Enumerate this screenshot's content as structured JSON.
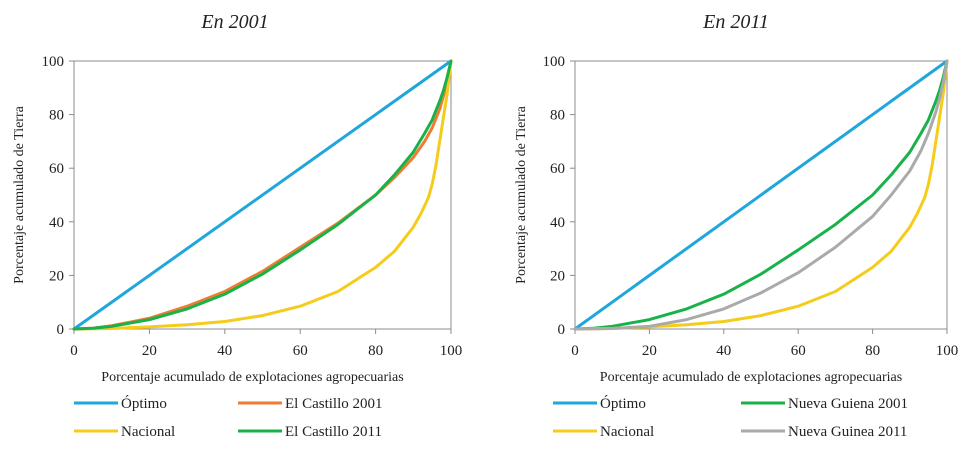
{
  "chart_data": [
    {
      "type": "line",
      "title": "En 2001",
      "xlabel": "Porcentaje acumulado de explotaciones agropecuarias",
      "ylabel": "Porcentaje acumulado de Tierra",
      "xlim": [
        0,
        100
      ],
      "ylim": [
        0,
        100
      ],
      "xticks": [
        "0",
        "20",
        "40",
        "60",
        "80",
        "100"
      ],
      "yticks": [
        "0",
        "20",
        "40",
        "60",
        "80",
        "100"
      ],
      "grid": false,
      "legend_position": "bottom",
      "series": [
        {
          "name": "Óptimo",
          "color": "#1fa6dc",
          "x": [
            0,
            100
          ],
          "y": [
            0,
            100
          ]
        },
        {
          "name": "El Castillo 2001",
          "color": "#ee7d31",
          "x": [
            0,
            5,
            10,
            20,
            30,
            40,
            50,
            60,
            70,
            80,
            85,
            90,
            93,
            95,
            97,
            98,
            99,
            100
          ],
          "y": [
            0,
            0.3,
            1.2,
            4,
            8.5,
            14,
            21.5,
            30.5,
            39.5,
            50,
            56.5,
            64,
            70,
            75,
            82,
            87,
            92,
            100
          ]
        },
        {
          "name": "Nacional",
          "color": "#f5cc1b",
          "x": [
            0,
            10,
            20,
            30,
            40,
            50,
            60,
            70,
            80,
            85,
            90,
            92,
            94,
            95,
            96,
            97,
            98,
            99,
            100
          ],
          "y": [
            0,
            0.2,
            0.8,
            1.6,
            2.8,
            5,
            8.5,
            14,
            23,
            29,
            38,
            43,
            49,
            54,
            61,
            70,
            79,
            88,
            100
          ]
        },
        {
          "name": "El Castillo 2011",
          "color": "#19b24a",
          "x": [
            0,
            5,
            10,
            20,
            30,
            40,
            50,
            60,
            70,
            80,
            85,
            90,
            93,
            95,
            97,
            98,
            99,
            100
          ],
          "y": [
            0,
            0.3,
            1,
            3.5,
            7.5,
            13,
            20.5,
            29.5,
            39,
            50,
            57.5,
            66,
            73,
            78,
            85,
            89,
            94,
            100
          ]
        }
      ]
    },
    {
      "type": "line",
      "title": "En 2011",
      "xlabel": "Porcentaje acumulado de explotaciones agropecuarias",
      "ylabel": "Porcentaje acumulado de Tierra",
      "xlim": [
        0,
        100
      ],
      "ylim": [
        0,
        100
      ],
      "xticks": [
        "0",
        "20",
        "40",
        "60",
        "80",
        "100"
      ],
      "yticks": [
        "0",
        "20",
        "40",
        "60",
        "80",
        "100"
      ],
      "grid": false,
      "legend_position": "bottom",
      "series": [
        {
          "name": "Óptimo",
          "color": "#1fa6dc",
          "x": [
            0,
            100
          ],
          "y": [
            0,
            100
          ]
        },
        {
          "name": "Nueva Guiena 2001",
          "color": "#19b24a",
          "x": [
            0,
            5,
            10,
            20,
            30,
            40,
            50,
            60,
            70,
            80,
            85,
            90,
            93,
            95,
            97,
            98,
            99,
            100
          ],
          "y": [
            0,
            0.3,
            1,
            3.5,
            7.5,
            13,
            20.5,
            29.5,
            39,
            50,
            57.5,
            66,
            73,
            78,
            85,
            89,
            94,
            100
          ]
        },
        {
          "name": "Nacional",
          "color": "#f5cc1b",
          "x": [
            0,
            10,
            20,
            30,
            40,
            50,
            60,
            70,
            80,
            85,
            90,
            92,
            94,
            95,
            96,
            97,
            98,
            99,
            100
          ],
          "y": [
            0,
            0.2,
            0.8,
            1.6,
            2.8,
            5,
            8.5,
            14,
            23,
            29,
            38,
            43,
            49,
            54,
            61,
            70,
            79,
            88,
            100
          ]
        },
        {
          "name": "Nueva Guinea 2011",
          "color": "#aaaaaa",
          "x": [
            0,
            10,
            20,
            30,
            40,
            50,
            60,
            70,
            80,
            85,
            90,
            93,
            95,
            97,
            98,
            99,
            100
          ],
          "y": [
            0,
            0.2,
            1,
            3.5,
            7.5,
            13.5,
            21,
            30.5,
            42,
            50,
            59,
            66.5,
            73,
            81,
            86,
            92,
            100
          ]
        }
      ]
    }
  ]
}
